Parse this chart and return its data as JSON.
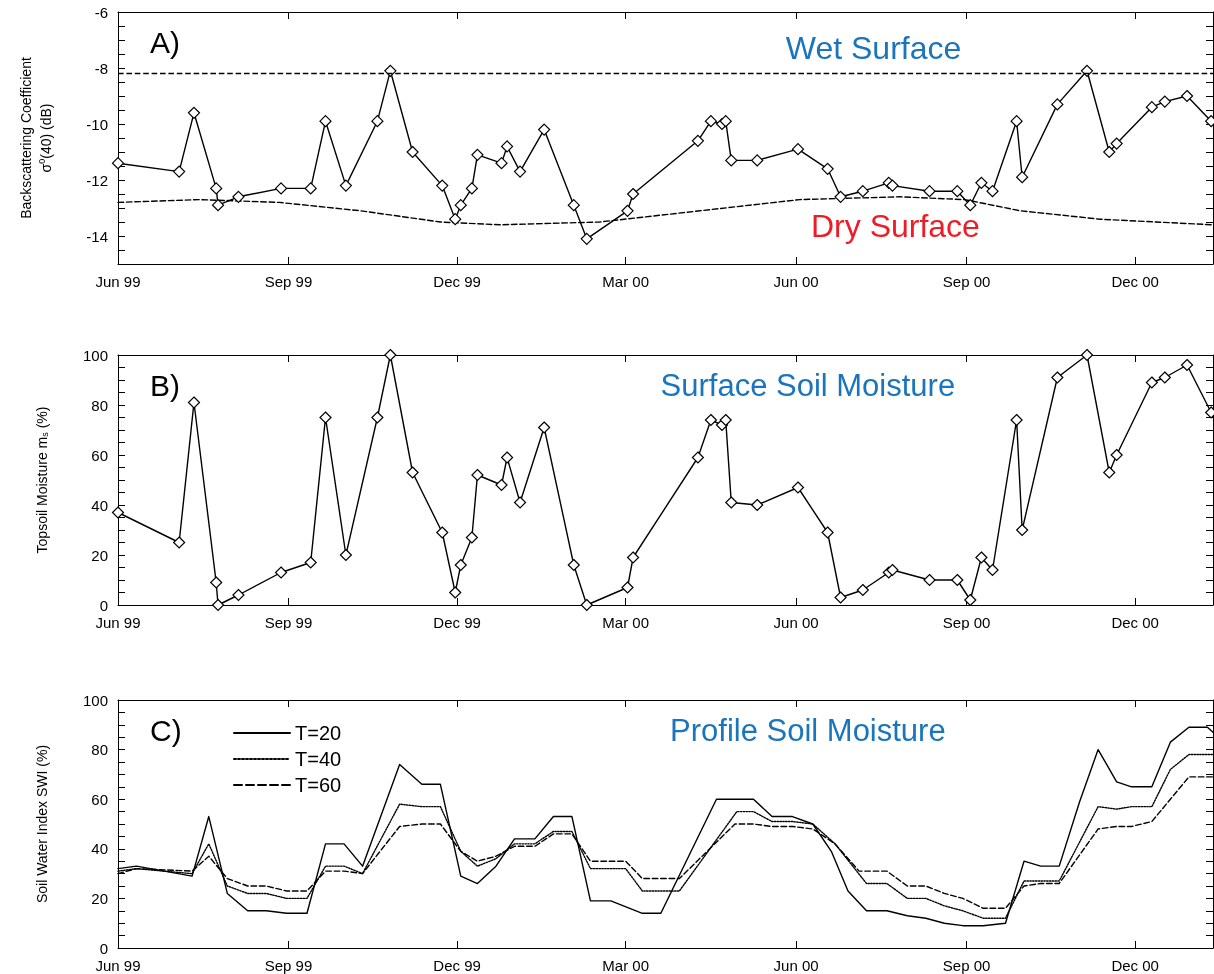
{
  "chart_data": [
    {
      "type": "line",
      "title": "A)",
      "ylabel": "Backscattering Coefficient\nσ$^{0}$(40) (dB)",
      "marker": "diamond",
      "line_style": "solid",
      "xlim": [
        "1999-06-01",
        "2001-01-12"
      ],
      "xticks": [
        {
          "value": "1999-06-01",
          "label": "Jun 99"
        },
        {
          "value": "1999-09-01",
          "label": "Sep 99"
        },
        {
          "value": "1999-12-01",
          "label": "Dec 99"
        },
        {
          "value": "2000-03-01",
          "label": "Mar 00"
        },
        {
          "value": "2000-06-01",
          "label": "Jun 00"
        },
        {
          "value": "2000-09-01",
          "label": "Sep 00"
        },
        {
          "value": "2000-12-01",
          "label": "Dec 00"
        }
      ],
      "ylim": [
        -15,
        -6
      ],
      "yticks": [
        {
          "value": -14.5,
          "label": null
        },
        -14,
        {
          "value": -13.5,
          "label": null
        },
        {
          "value": -13,
          "label": null
        },
        {
          "value": -12.5,
          "label": null
        },
        -12,
        {
          "value": -11.5,
          "label": null
        },
        {
          "value": -11,
          "label": null
        },
        {
          "value": -10.5,
          "label": null
        },
        -10,
        {
          "value": -9.5,
          "label": null
        },
        {
          "value": -9,
          "label": null
        },
        {
          "value": -8.5,
          "label": null
        },
        -8,
        {
          "value": -7.5,
          "label": null
        },
        {
          "value": -7,
          "label": null
        },
        {
          "value": -6.5,
          "label": null
        },
        -6
      ],
      "series": [
        {
          "color": "#000000",
          "x": [
            "1999-06-01",
            "1999-07-04",
            "1999-07-12",
            "1999-07-24",
            "1999-07-25",
            "1999-08-05",
            "1999-08-28",
            "1999-09-13",
            "1999-09-21",
            "1999-10-02",
            "1999-10-19",
            "1999-10-26",
            "1999-11-07",
            "1999-11-23",
            "1999-11-30",
            "1999-12-03",
            "1999-12-09",
            "1999-12-12",
            "1999-12-25",
            "1999-12-28",
            "2000-01-04",
            "2000-01-17",
            "2000-02-02",
            "2000-02-09",
            "2000-03-02",
            "2000-03-05",
            "2000-04-09",
            "2000-04-16",
            "2000-04-22",
            "2000-04-24",
            "2000-04-27",
            "2000-05-11",
            "2000-06-02",
            "2000-06-18",
            "2000-06-25",
            "2000-07-07",
            "2000-07-21",
            "2000-07-23",
            "2000-08-12",
            "2000-08-27",
            "2000-09-03",
            "2000-09-09",
            "2000-09-15",
            "2000-09-28",
            "2000-10-01",
            "2000-10-20",
            "2000-11-05",
            "2000-11-17",
            "2000-11-21",
            "2000-12-10",
            "2000-12-17",
            "2000-12-29",
            "2001-01-11"
          ],
          "values": [
            -11.4,
            -11.7,
            -9.6,
            -12.3,
            -12.9,
            -12.6,
            -12.3,
            -12.3,
            -9.9,
            -12.2,
            -9.9,
            -8.1,
            -11.0,
            -12.2,
            -13.4,
            -12.9,
            -12.3,
            -11.1,
            -11.4,
            -10.8,
            -11.7,
            -10.2,
            -12.9,
            -14.1,
            -13.1,
            -12.5,
            -10.6,
            -9.9,
            -10.0,
            -9.9,
            -11.3,
            -11.3,
            -10.9,
            -11.6,
            -12.6,
            -12.4,
            -12.1,
            -12.2,
            -12.4,
            -12.4,
            -12.9,
            -12.1,
            -12.4,
            -9.9,
            -11.9,
            -9.3,
            -8.1,
            -11.0,
            -10.7,
            -9.4,
            -9.2,
            -9.0,
            -9.9
          ]
        },
        {
          "name": "Dry Surface",
          "color": "#000000",
          "marker": "none",
          "line_style": "dashed",
          "x": [
            "1999-06-01",
            "1999-07-15",
            "1999-08-27",
            "1999-10-10",
            "1999-11-22",
            "1999-12-24",
            "2000-02-16",
            "2000-04-10",
            "2000-06-03",
            "2000-07-27",
            "2000-08-31",
            "2000-09-30",
            "2000-11-12",
            "2001-01-12"
          ],
          "values": [
            -12.8,
            -12.7,
            -12.8,
            -13.1,
            -13.5,
            -13.6,
            -13.5,
            -13.1,
            -12.7,
            -12.6,
            -12.7,
            -13.1,
            -13.4,
            -13.6
          ]
        }
      ],
      "ref_lines": [
        {
          "axis": "y",
          "value": -8.2,
          "label": "Wet Surface",
          "color": "#000000",
          "line_style": "dashed"
        }
      ]
    },
    {
      "type": "line",
      "title": "B)",
      "ylabel": "Topsoil Moisture m$_{s}$ (%)",
      "marker": "diamond",
      "line_style": "solid",
      "xlim": [
        "1999-06-01",
        "2001-01-12"
      ],
      "xticks": [
        {
          "value": "1999-06-01",
          "label": "Jun 99"
        },
        {
          "value": "1999-09-01",
          "label": "Sep 99"
        },
        {
          "value": "1999-12-01",
          "label": "Dec 99"
        },
        {
          "value": "2000-03-01",
          "label": "Mar 00"
        },
        {
          "value": "2000-06-01",
          "label": "Jun 00"
        },
        {
          "value": "2000-09-01",
          "label": "Sep 00"
        },
        {
          "value": "2000-12-01",
          "label": "Dec 00"
        }
      ],
      "ylim": [
        0,
        100
      ],
      "yticks": [
        0,
        {
          "value": 5,
          "label": null
        },
        {
          "value": 10,
          "label": null
        },
        {
          "value": 15,
          "label": null
        },
        20,
        {
          "value": 25,
          "label": null
        },
        {
          "value": 30,
          "label": null
        },
        {
          "value": 35,
          "label": null
        },
        40,
        {
          "value": 45,
          "label": null
        },
        {
          "value": 50,
          "label": null
        },
        {
          "value": 55,
          "label": null
        },
        60,
        {
          "value": 65,
          "label": null
        },
        {
          "value": 70,
          "label": null
        },
        {
          "value": 75,
          "label": null
        },
        80,
        {
          "value": 85,
          "label": null
        },
        {
          "value": 90,
          "label": null
        },
        {
          "value": 95,
          "label": null
        },
        100
      ],
      "series": [
        {
          "color": "#000000",
          "x": [
            "1999-06-01",
            "1999-07-04",
            "1999-07-12",
            "1999-07-24",
            "1999-07-25",
            "1999-08-05",
            "1999-08-28",
            "1999-09-13",
            "1999-09-21",
            "1999-10-02",
            "1999-10-19",
            "1999-10-26",
            "1999-11-07",
            "1999-11-23",
            "1999-11-30",
            "1999-12-03",
            "1999-12-09",
            "1999-12-12",
            "1999-12-25",
            "1999-12-28",
            "2000-01-04",
            "2000-01-17",
            "2000-02-02",
            "2000-02-09",
            "2000-03-02",
            "2000-03-05",
            "2000-04-09",
            "2000-04-16",
            "2000-04-22",
            "2000-04-24",
            "2000-04-27",
            "2000-05-11",
            "2000-06-02",
            "2000-06-18",
            "2000-06-25",
            "2000-07-07",
            "2000-07-21",
            "2000-07-23",
            "2000-08-12",
            "2000-08-27",
            "2000-09-03",
            "2000-09-09",
            "2000-09-15",
            "2000-09-28",
            "2000-10-01",
            "2000-10-20",
            "2000-11-05",
            "2000-11-17",
            "2000-11-21",
            "2000-12-10",
            "2000-12-17",
            "2000-12-29",
            "2001-01-11"
          ],
          "values": [
            37,
            25,
            81,
            9,
            0,
            4,
            13,
            17,
            75,
            20,
            75,
            100,
            53,
            29,
            5,
            16,
            27,
            52,
            48,
            59,
            41,
            71,
            16,
            0,
            7,
            19,
            59,
            74,
            72,
            74,
            41,
            40,
            47,
            29,
            3,
            6,
            13,
            14,
            10,
            10,
            2,
            19,
            14,
            74,
            30,
            91,
            100,
            53,
            60,
            89,
            91,
            96,
            77
          ]
        }
      ],
      "annotations": [
        "Surface Soil Moisture"
      ]
    },
    {
      "type": "line",
      "title": "C)",
      "ylabel": "Soil Water Index SWI (%)",
      "legend": "top left",
      "xlim": [
        "1999-06-01",
        "2001-01-12"
      ],
      "xticks": [
        {
          "value": "1999-06-01",
          "label": "Jun 99"
        },
        {
          "value": "1999-09-01",
          "label": "Sep 99"
        },
        {
          "value": "1999-12-01",
          "label": "Dec 99"
        },
        {
          "value": "2000-03-01",
          "label": "Mar 00"
        },
        {
          "value": "2000-06-01",
          "label": "Jun 00"
        },
        {
          "value": "2000-09-01",
          "label": "Sep 00"
        },
        {
          "value": "2000-12-01",
          "label": "Dec 00"
        }
      ],
      "ylim": [
        0,
        100
      ],
      "yticks": [
        0,
        {
          "value": 5,
          "label": null
        },
        {
          "value": 10,
          "label": null
        },
        {
          "value": 15,
          "label": null
        },
        20,
        {
          "value": 25,
          "label": null
        },
        {
          "value": 30,
          "label": null
        },
        {
          "value": 35,
          "label": null
        },
        40,
        {
          "value": 45,
          "label": null
        },
        {
          "value": 50,
          "label": null
        },
        {
          "value": 55,
          "label": null
        },
        60,
        {
          "value": 65,
          "label": null
        },
        {
          "value": 70,
          "label": null
        },
        {
          "value": 75,
          "label": null
        },
        80,
        {
          "value": 85,
          "label": null
        },
        {
          "value": 90,
          "label": null
        },
        {
          "value": 95,
          "label": null
        },
        100
      ],
      "series": [
        {
          "name": "T=20",
          "color": "#000000",
          "line_style": "solid",
          "x": [
            "1999-06-01",
            "1999-06-11",
            "1999-07-11",
            "1999-07-20",
            "1999-07-30",
            "1999-08-10",
            "1999-08-20",
            "1999-08-31",
            "1999-09-11",
            "1999-09-21",
            "1999-10-01",
            "1999-10-11",
            "1999-10-31",
            "1999-11-12",
            "1999-11-22",
            "1999-12-03",
            "1999-12-12",
            "1999-12-22",
            "2000-01-01",
            "2000-01-12",
            "2000-01-22",
            "2000-02-01",
            "2000-02-11",
            "2000-02-22",
            "2000-03-10",
            "2000-03-20",
            "2000-04-19",
            "2000-04-29",
            "2000-05-09",
            "2000-05-19",
            "2000-05-30",
            "2000-06-10",
            "2000-06-20",
            "2000-06-29",
            "2000-07-09",
            "2000-07-20",
            "2000-07-31",
            "2000-08-10",
            "2000-08-20",
            "2000-08-30",
            "2000-09-10",
            "2000-09-22",
            "2000-10-02",
            "2000-10-11",
            "2000-10-21",
            "2000-11-01",
            "2000-11-11",
            "2000-11-21",
            "2000-11-29",
            "2000-12-10",
            "2000-12-20",
            "2000-12-30",
            "2001-01-09",
            "2001-01-12"
          ],
          "values": [
            32,
            33,
            29,
            53,
            22,
            15,
            15,
            14,
            14,
            42,
            42,
            33,
            74,
            66,
            66,
            29,
            26,
            33,
            44,
            44,
            53,
            53,
            19,
            19,
            14,
            14,
            60,
            60,
            60,
            53,
            53,
            50,
            39,
            23,
            15,
            15,
            13,
            12,
            10,
            9,
            9,
            10,
            35,
            33,
            33,
            59,
            80,
            67,
            65,
            65,
            83,
            89,
            89,
            87
          ]
        },
        {
          "name": "T=40",
          "color": "#000000",
          "line_style": "dotted",
          "x": [
            "1999-06-01",
            "1999-06-11",
            "1999-07-11",
            "1999-07-20",
            "1999-07-30",
            "1999-08-10",
            "1999-08-20",
            "1999-08-31",
            "1999-09-11",
            "1999-09-21",
            "1999-10-01",
            "1999-10-11",
            "1999-10-31",
            "1999-11-12",
            "1999-11-22",
            "1999-12-03",
            "1999-12-12",
            "1999-12-22",
            "2000-01-01",
            "2000-01-12",
            "2000-01-22",
            "2000-02-01",
            "2000-02-11",
            "2000-02-22",
            "2000-03-01",
            "2000-03-10",
            "2000-03-30",
            "2000-04-30",
            "2000-05-09",
            "2000-05-19",
            "2000-05-30",
            "2000-06-10",
            "2000-06-22",
            "2000-07-09",
            "2000-07-20",
            "2000-07-31",
            "2000-08-10",
            "2000-08-20",
            "2000-08-30",
            "2000-09-10",
            "2000-09-22",
            "2000-10-02",
            "2000-10-11",
            "2000-10-21",
            "2000-11-11",
            "2000-11-21",
            "2000-11-29",
            "2000-12-10",
            "2000-12-20",
            "2000-12-30",
            "2001-01-12"
          ],
          "values": [
            31,
            32,
            30,
            42,
            25,
            22,
            22,
            20,
            20,
            33,
            33,
            30,
            58,
            57,
            57,
            39,
            33,
            36,
            42,
            42,
            47,
            47,
            32,
            32,
            32,
            23,
            23,
            55,
            55,
            51,
            51,
            50,
            42,
            26,
            26,
            20,
            20,
            17,
            15,
            12,
            12,
            27,
            27,
            27,
            57,
            56,
            57,
            57,
            72,
            78,
            78
          ]
        },
        {
          "name": "T=60",
          "color": "#000000",
          "line_style": "dashed",
          "x": [
            "1999-06-01",
            "1999-06-11",
            "1999-07-11",
            "1999-07-20",
            "1999-07-30",
            "1999-08-10",
            "1999-08-20",
            "1999-08-31",
            "1999-09-11",
            "1999-09-21",
            "1999-10-01",
            "1999-10-11",
            "1999-10-31",
            "1999-11-12",
            "1999-11-22",
            "1999-12-03",
            "1999-12-12",
            "1999-12-22",
            "2000-01-01",
            "2000-01-12",
            "2000-01-22",
            "2000-02-01",
            "2000-02-11",
            "2000-02-22",
            "2000-03-01",
            "2000-03-10",
            "2000-03-30",
            "2000-04-29",
            "2000-05-09",
            "2000-05-19",
            "2000-05-30",
            "2000-06-10",
            "2000-06-22",
            "2000-07-05",
            "2000-07-20",
            "2000-07-31",
            "2000-08-10",
            "2000-08-20",
            "2000-08-30",
            "2000-09-10",
            "2000-09-22",
            "2000-10-02",
            "2000-10-11",
            "2000-10-21",
            "2000-11-11",
            "2000-11-21",
            "2000-11-29",
            "2000-12-10",
            "2000-12-20",
            "2000-12-30",
            "2001-01-12"
          ],
          "values": [
            30,
            32,
            31,
            37,
            28,
            25,
            25,
            23,
            23,
            31,
            31,
            30,
            49,
            50,
            50,
            39,
            35,
            37,
            41,
            41,
            46,
            46,
            35,
            35,
            35,
            28,
            28,
            50,
            50,
            49,
            49,
            48,
            42,
            31,
            31,
            25,
            25,
            22,
            20,
            16,
            16,
            25,
            26,
            26,
            48,
            49,
            49,
            51,
            60,
            69,
            69
          ]
        }
      ],
      "annotations": [
        "Profile Soil Moisture"
      ]
    }
  ]
}
